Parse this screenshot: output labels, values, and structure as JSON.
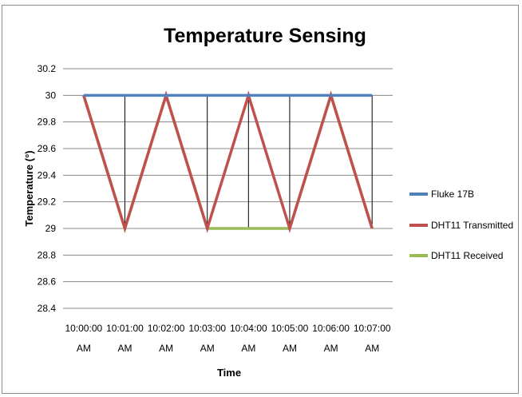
{
  "chart_data": {
    "type": "line",
    "title": "Temperature Sensing",
    "xlabel": "Time",
    "ylabel": "Temperature (°)",
    "categories": [
      [
        "10:00:00",
        "AM"
      ],
      [
        "10:01:00",
        "AM"
      ],
      [
        "10:02:00",
        "AM"
      ],
      [
        "10:03:00",
        "AM"
      ],
      [
        "10:04:00",
        "AM"
      ],
      [
        "10:05:00",
        "AM"
      ],
      [
        "10:06:00",
        "AM"
      ],
      [
        "10:07:00",
        "AM"
      ]
    ],
    "ylim": [
      28.4,
      30.2
    ],
    "yticks": [
      "30.2",
      "30",
      "29.8",
      "29.6",
      "29.4",
      "29.2",
      "29",
      "28.8",
      "28.6",
      "28.4"
    ],
    "grid": true,
    "legend_position": "right",
    "series": [
      {
        "name": "Fluke 17B",
        "color": "#4f81bd",
        "values": [
          30,
          30,
          30,
          30,
          30,
          30,
          30,
          30
        ]
      },
      {
        "name": "DHT11 Transmitted",
        "color": "#c0504d",
        "values": [
          30,
          29,
          30,
          29,
          30,
          29,
          30,
          29
        ]
      },
      {
        "name": "DHT11 Received",
        "color": "#9bbb59",
        "values": [
          30,
          29,
          30,
          29,
          29,
          29,
          30,
          29
        ]
      }
    ]
  }
}
